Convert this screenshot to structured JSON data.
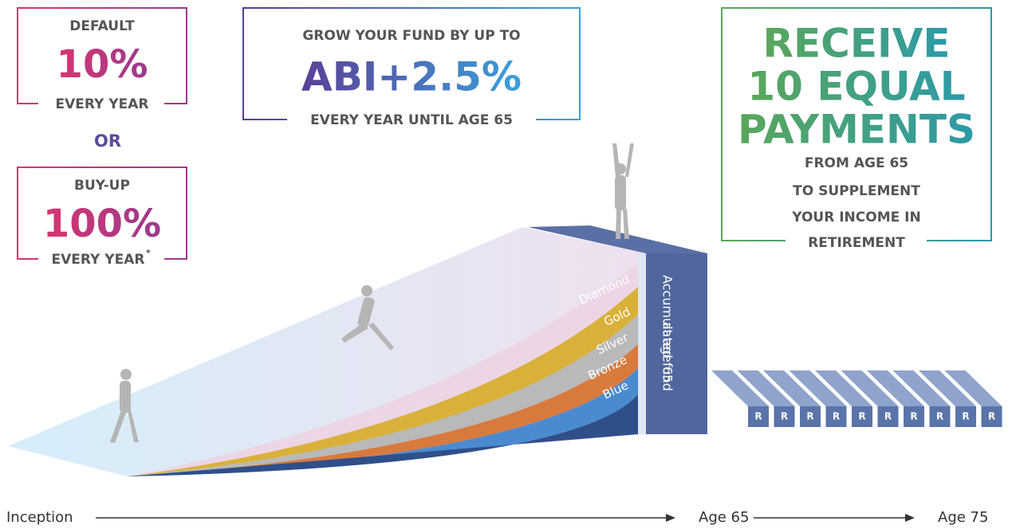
{
  "boxes": {
    "default": {
      "top": "DEFAULT",
      "big": "10%",
      "bottom": "EVERY YEAR"
    },
    "or": "OR",
    "buy_up": {
      "top": "BUY-UP",
      "big": "100%",
      "bottom": "EVERY YEAR",
      "footnote_mark": "*"
    },
    "grow": {
      "top": "GROW YOUR FUND BY UP TO",
      "big": "ABI+2.5%",
      "bottom": "EVERY YEAR UNTIL AGE 65"
    },
    "receive": {
      "big": [
        "RECEIVE",
        "10 EQUAL",
        "PAYMENTS"
      ],
      "lines": [
        "FROM AGE 65",
        "TO SUPPLEMENT",
        "YOUR INCOME IN",
        "RETIREMENT"
      ]
    }
  },
  "tiers": [
    "Diamond",
    "Gold",
    "Silver",
    "Bronze",
    "Blue"
  ],
  "fund_label": [
    "Accumulated fund",
    "at age 65"
  ],
  "payments": [
    "R",
    "R",
    "R",
    "R",
    "R",
    "R",
    "R",
    "R",
    "R",
    "R"
  ],
  "timeline": [
    "Inception",
    "Age 65",
    "Age 75"
  ]
}
